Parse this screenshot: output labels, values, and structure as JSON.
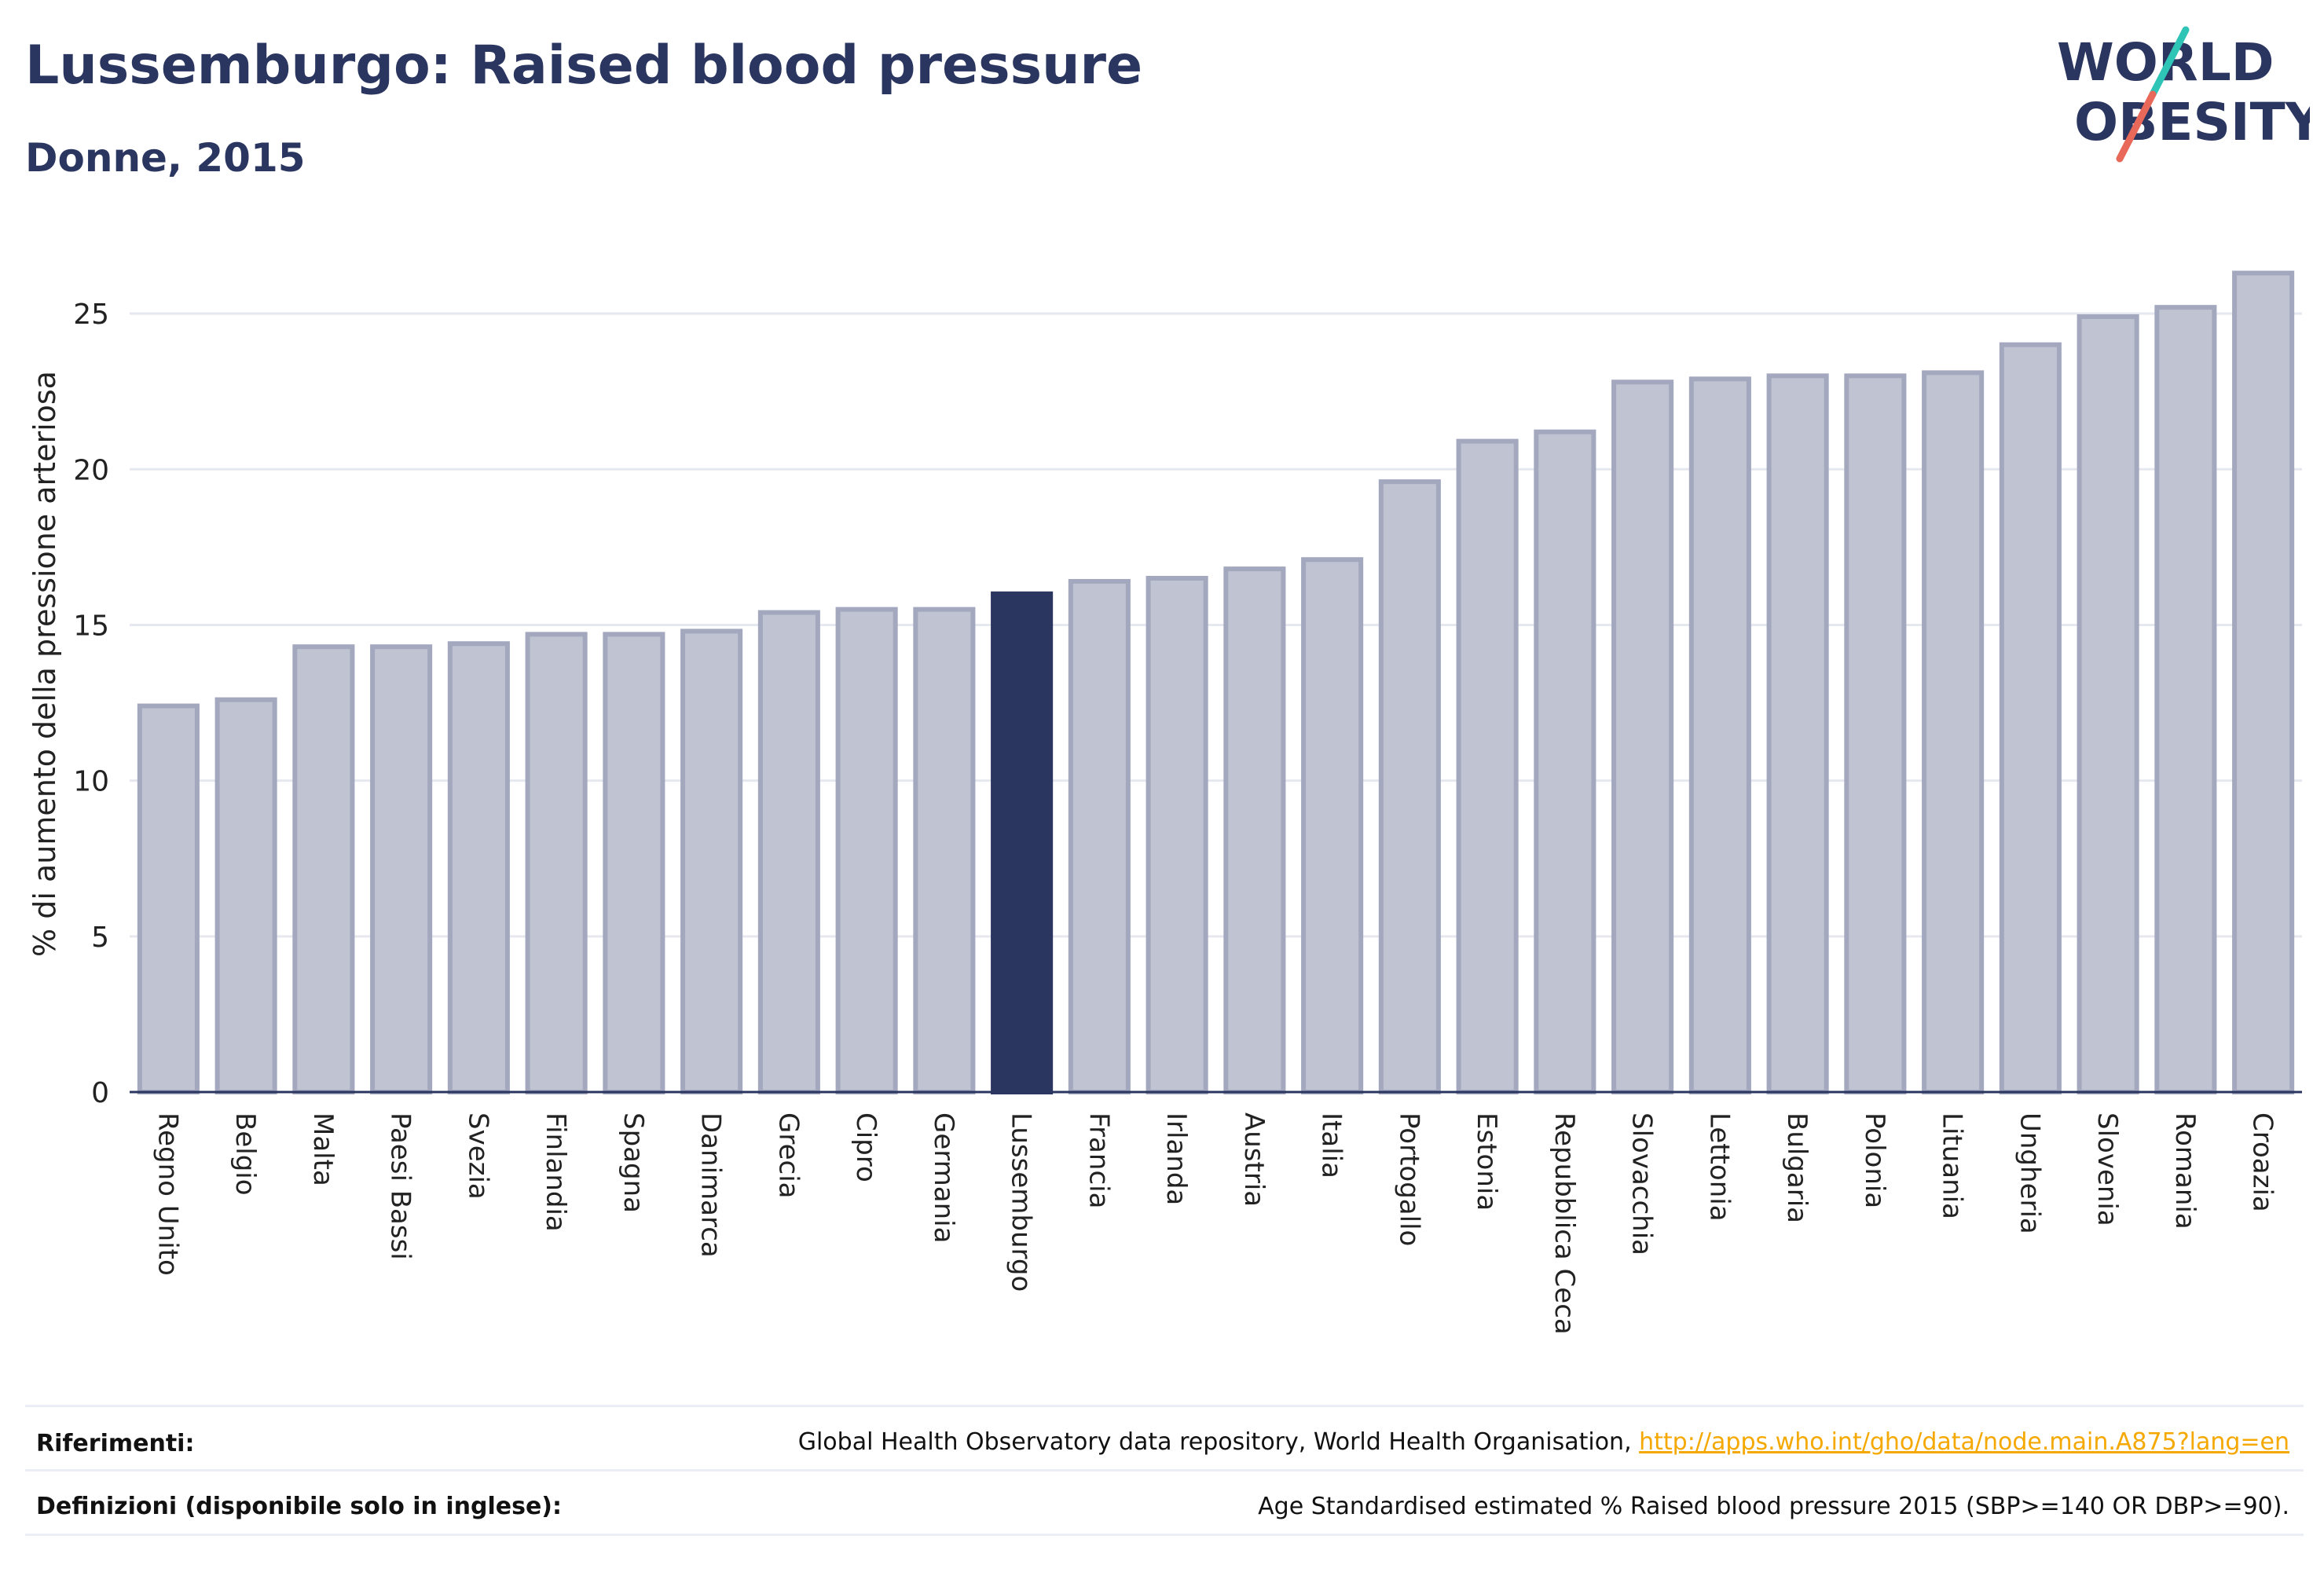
{
  "header": {
    "title": "Lussemburgo: Raised blood pressure",
    "subtitle": "Donne, 2015"
  },
  "logo": {
    "line1": "WORLD",
    "line2": "OBESITY"
  },
  "colors": {
    "title": "#2a3560",
    "bar": "#c0c3d1",
    "bar_border": "#a3a8bf",
    "highlight": "#2a3560",
    "link": "#f5a800",
    "logo_teal": "#2ec4b6",
    "logo_coral": "#e8685a"
  },
  "chart_data": {
    "type": "bar",
    "title": "Lussemburgo: Raised blood pressure",
    "subtitle": "Donne, 2015",
    "ylabel": "% di aumento della pressione arteriosa",
    "xlabel": "",
    "ylim": [
      0,
      27.5
    ],
    "yticks": [
      0,
      5,
      10,
      15,
      20,
      25
    ],
    "grid": true,
    "highlight": "Lussemburgo",
    "categories": [
      "Regno Unito",
      "Belgio",
      "Malta",
      "Paesi Bassi",
      "Svezia",
      "Finlandia",
      "Spagna",
      "Danimarca",
      "Grecia",
      "Cipro",
      "Germania",
      "Lussemburgo",
      "Francia",
      "Irlanda",
      "Austria",
      "Italia",
      "Portogallo",
      "Estonia",
      "Repubblica Ceca",
      "Slovacchia",
      "Lettonia",
      "Bulgaria",
      "Polonia",
      "Lituania",
      "Ungheria",
      "Slovenia",
      "Romania",
      "Croazia"
    ],
    "values": [
      12.4,
      12.6,
      14.3,
      14.3,
      14.4,
      14.7,
      14.7,
      14.8,
      15.4,
      15.5,
      15.5,
      16.0,
      16.4,
      16.5,
      16.8,
      17.1,
      19.6,
      20.9,
      21.2,
      22.8,
      22.9,
      23.0,
      23.0,
      23.1,
      24.0,
      24.9,
      25.2,
      26.3
    ]
  },
  "footer": {
    "references_label": "Riferimenti:",
    "references_text": "Global Health Observatory data repository, World Health Organisation, ",
    "references_link": "http://apps.who.int/gho/data/node.main.A875?lang=en",
    "definitions_label": "Definizioni (disponibile solo in inglese):",
    "definitions_text": "Age Standardised estimated % Raised blood pressure 2015 (SBP>=140 OR DBP>=90)."
  }
}
